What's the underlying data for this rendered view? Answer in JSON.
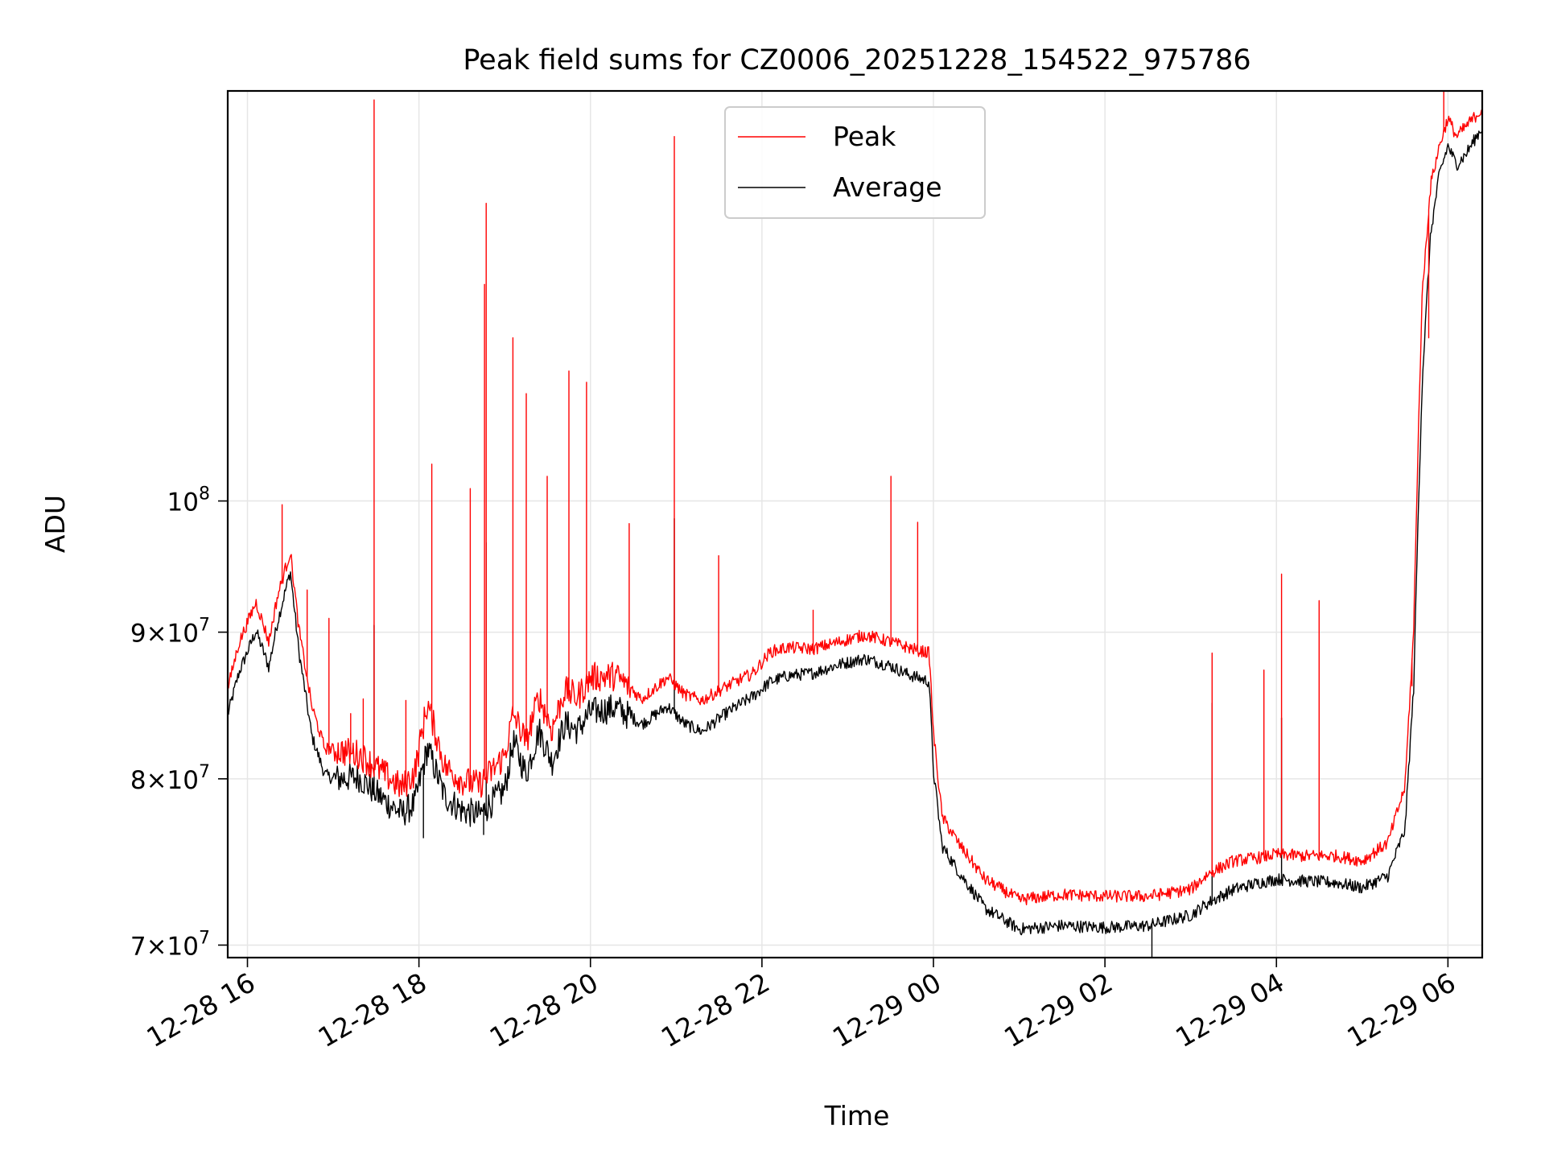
{
  "chart_data": {
    "type": "line",
    "title": "Peak field sums for CZ0006_20251228_154522_975786",
    "xlabel": "Time",
    "ylabel": "ADU",
    "yscale": "log",
    "ylim": [
      69300000,
      139000000
    ],
    "xlim_hours": [
      15.77,
      30.4
    ],
    "grid": true,
    "legend_position": "upper-center",
    "colors": {
      "peak": "#ff0000",
      "average": "#000000",
      "grid": "#e6e6e6"
    },
    "x_ticks": [
      {
        "hour": 16,
        "label": "12-28 16"
      },
      {
        "hour": 18,
        "label": "12-28 18"
      },
      {
        "hour": 20,
        "label": "12-28 20"
      },
      {
        "hour": 22,
        "label": "12-28 22"
      },
      {
        "hour": 24,
        "label": "12-29 00"
      },
      {
        "hour": 26,
        "label": "12-29 02"
      },
      {
        "hour": 28,
        "label": "12-29 04"
      },
      {
        "hour": 30,
        "label": "12-29 06"
      }
    ],
    "y_ticks": [
      {
        "value": 70000000,
        "base": "7",
        "exp": "7"
      },
      {
        "value": 80000000,
        "base": "8",
        "exp": "7"
      },
      {
        "value": 90000000,
        "base": "9",
        "exp": "7"
      },
      {
        "value": 100000000,
        "base": "",
        "exp": "8"
      }
    ],
    "series": [
      {
        "name": "Peak",
        "color": "#ff0000",
        "x_hours": [
          15.77,
          15.9,
          16.1,
          16.25,
          16.35,
          16.5,
          16.6,
          16.75,
          16.9,
          17.0,
          17.3,
          17.6,
          17.8,
          17.95,
          18.1,
          18.3,
          18.5,
          18.7,
          18.85,
          19.0,
          19.1,
          19.25,
          19.4,
          19.55,
          19.7,
          19.85,
          20.0,
          20.3,
          20.6,
          20.9,
          21.1,
          21.3,
          21.6,
          21.9,
          22.1,
          22.3,
          22.6,
          22.9,
          23.2,
          23.5,
          23.7,
          23.95,
          24.0,
          24.1,
          24.3,
          24.6,
          25.0,
          25.5,
          26.0,
          26.5,
          27.0,
          27.2,
          27.5,
          27.8,
          28.0,
          28.3,
          28.7,
          29.0,
          29.3,
          29.5,
          29.6,
          29.7,
          29.8,
          29.9,
          30.0,
          30.1,
          30.2,
          30.4
        ],
        "values": [
          86000000,
          89200000,
          92200000,
          89300000,
          92600000,
          96000000,
          90200000,
          84800000,
          82000000,
          81900000,
          81600000,
          80300000,
          79400000,
          80400000,
          85000000,
          80800000,
          79900000,
          79600000,
          80500000,
          81500000,
          84300000,
          82400000,
          85500000,
          83200000,
          85900000,
          85400000,
          86800000,
          86900000,
          85300000,
          86800000,
          85600000,
          85200000,
          86200000,
          87100000,
          88600000,
          88900000,
          88800000,
          89300000,
          89800000,
          89300000,
          88900000,
          88500000,
          83000000,
          77600000,
          75900000,
          73800000,
          72600000,
          72900000,
          72800000,
          72800000,
          73200000,
          74100000,
          74900000,
          75100000,
          75300000,
          75200000,
          75200000,
          74900000,
          76000000,
          79500000,
          90000000,
          118000000,
          129000000,
          133000000,
          136000000,
          134000000,
          135000000,
          137000000
        ],
        "spikes": [
          {
            "hour": 16.4,
            "value": 99700000
          },
          {
            "hour": 16.7,
            "value": 93100000
          },
          {
            "hour": 16.95,
            "value": 91000000
          },
          {
            "hour": 17.2,
            "value": 84300000
          },
          {
            "hour": 17.35,
            "value": 85300000
          },
          {
            "hour": 17.48,
            "value": 138000000
          },
          {
            "hour": 17.85,
            "value": 85200000
          },
          {
            "hour": 18.15,
            "value": 103000000
          },
          {
            "hour": 18.6,
            "value": 101000000
          },
          {
            "hour": 18.78,
            "value": 127000000
          },
          {
            "hour": 18.76,
            "value": 119000000
          },
          {
            "hour": 19.1,
            "value": 114000000
          },
          {
            "hour": 19.25,
            "value": 109000000
          },
          {
            "hour": 19.5,
            "value": 102000000
          },
          {
            "hour": 19.75,
            "value": 111000000
          },
          {
            "hour": 19.95,
            "value": 110000000
          },
          {
            "hour": 20.45,
            "value": 98200000
          },
          {
            "hour": 20.98,
            "value": 134000000
          },
          {
            "hour": 21.5,
            "value": 95700000
          },
          {
            "hour": 22.6,
            "value": 91600000
          },
          {
            "hour": 23.5,
            "value": 102000000
          },
          {
            "hour": 23.82,
            "value": 98300000
          },
          {
            "hour": 27.25,
            "value": 88500000
          },
          {
            "hour": 27.85,
            "value": 87300000
          },
          {
            "hour": 28.06,
            "value": 94300000
          },
          {
            "hour": 28.5,
            "value": 92300000
          },
          {
            "hour": 29.58,
            "value": 86200000
          },
          {
            "hour": 29.78,
            "value": 114000000
          },
          {
            "hour": 29.95,
            "value": 139000000
          }
        ]
      },
      {
        "name": "Average",
        "color": "#000000",
        "x_hours": [
          15.77,
          15.9,
          16.1,
          16.25,
          16.35,
          16.5,
          16.6,
          16.75,
          16.9,
          17.0,
          17.3,
          17.6,
          17.8,
          17.95,
          18.1,
          18.3,
          18.5,
          18.7,
          18.85,
          19.0,
          19.1,
          19.25,
          19.4,
          19.55,
          19.7,
          19.85,
          20.0,
          20.3,
          20.6,
          20.9,
          21.1,
          21.3,
          21.6,
          21.9,
          22.1,
          22.3,
          22.6,
          22.9,
          23.2,
          23.5,
          23.7,
          23.95,
          24.0,
          24.1,
          24.3,
          24.6,
          25.0,
          25.5,
          26.0,
          26.5,
          27.0,
          27.2,
          27.5,
          27.8,
          28.0,
          28.3,
          28.7,
          29.0,
          29.3,
          29.5,
          29.6,
          29.7,
          29.8,
          29.9,
          30.0,
          30.1,
          30.2,
          30.4
        ],
        "values": [
          84200000,
          87100000,
          90100000,
          87500000,
          90700000,
          94500000,
          88600000,
          82800000,
          80300000,
          80000000,
          80100000,
          78600000,
          77800000,
          78400000,
          82000000,
          78900000,
          78000000,
          77700000,
          78500000,
          79300000,
          82400000,
          80300000,
          83200000,
          81100000,
          83600000,
          83200000,
          84400000,
          84700000,
          83600000,
          84800000,
          83600000,
          83100000,
          84400000,
          85500000,
          86500000,
          86900000,
          87100000,
          87700000,
          88100000,
          87600000,
          87000000,
          86500000,
          80500000,
          75800000,
          74200000,
          72100000,
          70900000,
          71100000,
          71000000,
          71100000,
          71700000,
          72400000,
          73200000,
          73600000,
          73800000,
          73700000,
          73600000,
          73300000,
          74000000,
          76800000,
          86000000,
          110000000,
          124000000,
          130000000,
          133000000,
          131000000,
          132000000,
          135000000
        ],
        "spikes": [
          {
            "hour": 17.48,
            "value": 90500000
          },
          {
            "hour": 18.78,
            "value": 96700000
          },
          {
            "hour": 20.98,
            "value": 98600000
          },
          {
            "hour": 27.25,
            "value": 85000000
          },
          {
            "hour": 28.06,
            "value": 84000000
          },
          {
            "hour": 17.48,
            "value": 76800000
          },
          {
            "hour": 18.05,
            "value": 76300000
          },
          {
            "hour": 18.75,
            "value": 76500000
          },
          {
            "hour": 26.55,
            "value": 69300000
          }
        ]
      }
    ]
  }
}
